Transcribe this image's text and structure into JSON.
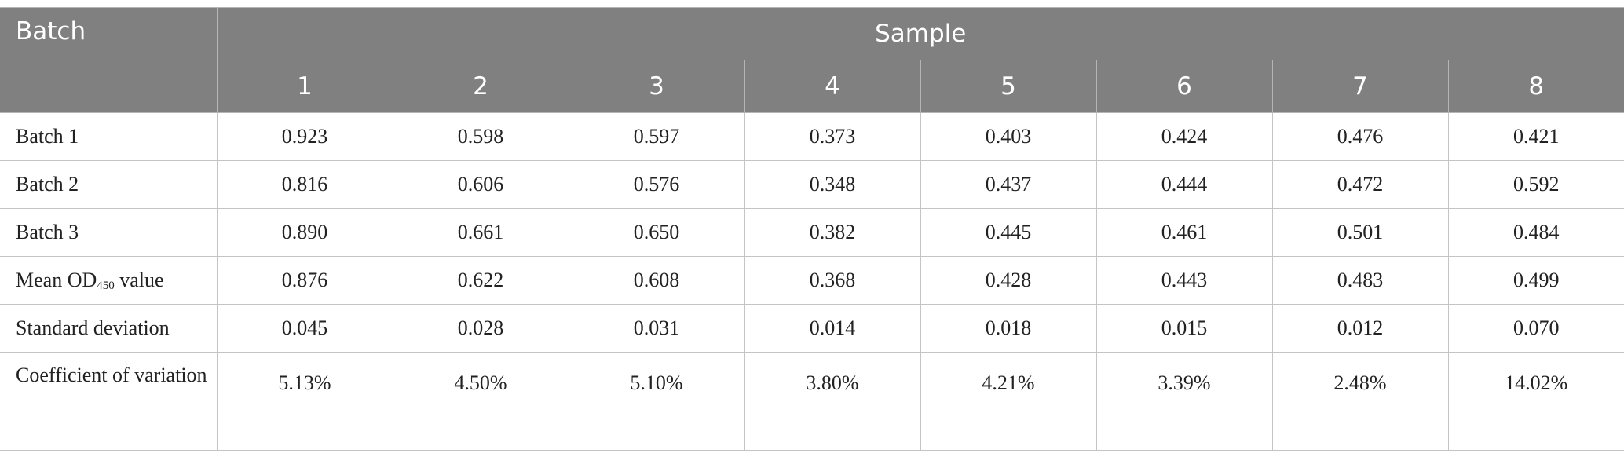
{
  "table": {
    "header": {
      "corner": "Batch",
      "group": "Sample",
      "columns": [
        "1",
        "2",
        "3",
        "4",
        "5",
        "6",
        "7",
        "8"
      ]
    },
    "rows": [
      {
        "label": "Batch 1",
        "cells": [
          "0.923",
          "0.598",
          "0.597",
          "0.373",
          "0.403",
          "0.424",
          "0.476",
          "0.421"
        ]
      },
      {
        "label": "Batch 2",
        "cells": [
          "0.816",
          "0.606",
          "0.576",
          "0.348",
          "0.437",
          "0.444",
          "0.472",
          "0.592"
        ]
      },
      {
        "label": "Batch 3",
        "cells": [
          "0.890",
          "0.661",
          "0.650",
          "0.382",
          "0.445",
          "0.461",
          "0.501",
          "0.484"
        ]
      },
      {
        "label": {
          "text": "Mean OD",
          "sub": "450",
          "after": " value"
        },
        "cells": [
          "0.876",
          "0.622",
          "0.608",
          "0.368",
          "0.428",
          "0.443",
          "0.483",
          "0.499"
        ]
      },
      {
        "label": "Standard deviation",
        "cells": [
          "0.045",
          "0.028",
          "0.031",
          "0.014",
          "0.018",
          "0.015",
          "0.012",
          "0.070"
        ]
      },
      {
        "label": "Coefficient of variation",
        "cells": [
          "5.13%",
          "4.50%",
          "5.10%",
          "3.80%",
          "4.21%",
          "3.39%",
          "2.48%",
          "14.02%"
        ]
      }
    ]
  }
}
